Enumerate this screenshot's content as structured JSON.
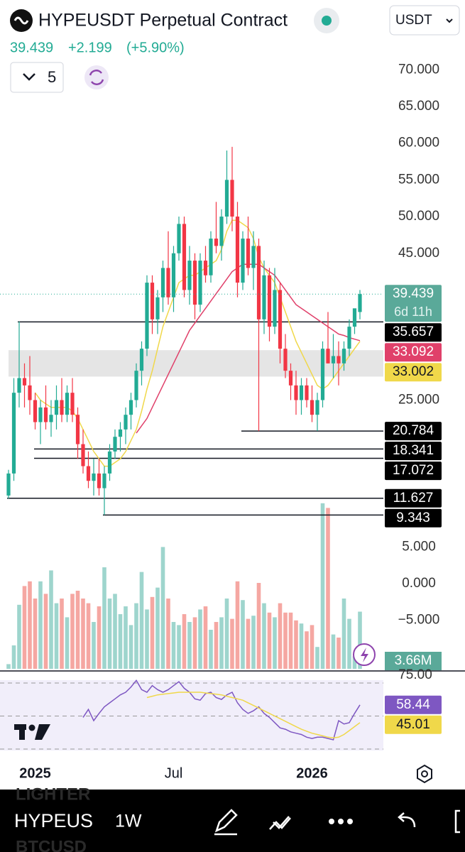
{
  "header": {
    "title": "HYPEUSDT Perpetual Contract",
    "currency": "USDT",
    "price": "39.439",
    "change": "+2.199",
    "change_percent": "(+5.90%)",
    "count": "5"
  },
  "chart_data": {
    "type": "candlestick",
    "categories": [
      null,
      null,
      null,
      null,
      null,
      "2025",
      null,
      null,
      null,
      null,
      null,
      null,
      null,
      null,
      null,
      null,
      null,
      null,
      null,
      null,
      null,
      null,
      null,
      null,
      null,
      null,
      null,
      null,
      null,
      null,
      null,
      "Jul",
      null,
      null,
      null,
      null,
      null,
      null,
      null,
      null,
      null,
      null,
      null,
      null,
      null,
      null,
      null,
      null,
      null,
      null,
      null,
      null,
      null,
      null,
      null,
      null,
      null,
      "2026",
      null,
      null,
      null,
      null,
      null,
      null,
      null,
      null,
      null
    ],
    "ohlc": [
      [
        12,
        15.5,
        11.6,
        15
      ],
      [
        15,
        28,
        14,
        26
      ],
      [
        26,
        35.7,
        24,
        28
      ],
      [
        28,
        30,
        24,
        27
      ],
      [
        27,
        31,
        23,
        25
      ],
      [
        25,
        26,
        21,
        22
      ],
      [
        22,
        25,
        19,
        24
      ],
      [
        24,
        27,
        21,
        22
      ],
      [
        22,
        25,
        20,
        23
      ],
      [
        23,
        27,
        21,
        25
      ],
      [
        25,
        28,
        22,
        23
      ],
      [
        23,
        27,
        22,
        26
      ],
      [
        26,
        28,
        22,
        23
      ],
      [
        23,
        24,
        17,
        19
      ],
      [
        19,
        21,
        15,
        16
      ],
      [
        16,
        18,
        13,
        14
      ],
      [
        14,
        17,
        12,
        15
      ],
      [
        15,
        17,
        12,
        13
      ],
      [
        13,
        16,
        9.343,
        15
      ],
      [
        15,
        19,
        14,
        18
      ],
      [
        18,
        21,
        17,
        20
      ],
      [
        20,
        22,
        18,
        21
      ],
      [
        21,
        24,
        19,
        23
      ],
      [
        23,
        26,
        21,
        25
      ],
      [
        25,
        30,
        24,
        29
      ],
      [
        29,
        33,
        27,
        32
      ],
      [
        32,
        42,
        31,
        41
      ],
      [
        41,
        42,
        34,
        36
      ],
      [
        36,
        40,
        34,
        39
      ],
      [
        39,
        44,
        37,
        43
      ],
      [
        43,
        48,
        38,
        39
      ],
      [
        39,
        46,
        37,
        45
      ],
      [
        45,
        50,
        44,
        49
      ],
      [
        49,
        50,
        39,
        40
      ],
      [
        40,
        46,
        38,
        44
      ],
      [
        44,
        45,
        36,
        38
      ],
      [
        38,
        45,
        37,
        44
      ],
      [
        44,
        46,
        41,
        42
      ],
      [
        42,
        48,
        41,
        47
      ],
      [
        47,
        52,
        45,
        46
      ],
      [
        46,
        51,
        44,
        50
      ],
      [
        50,
        59,
        49,
        55
      ],
      [
        55,
        59.5,
        48,
        50
      ],
      [
        50,
        52,
        39,
        41
      ],
      [
        41,
        48,
        40,
        47
      ],
      [
        47,
        50,
        42,
        43
      ],
      [
        43,
        48,
        40,
        46
      ],
      [
        46,
        47,
        20.784,
        36
      ],
      [
        36,
        44,
        34,
        42
      ],
      [
        42,
        43,
        33,
        35
      ],
      [
        35,
        43,
        34,
        40
      ],
      [
        40,
        41,
        30,
        32
      ],
      [
        32,
        34,
        28,
        29
      ],
      [
        29,
        30,
        25,
        27
      ],
      [
        27,
        29,
        23,
        25
      ],
      [
        25,
        28,
        23,
        27
      ],
      [
        27,
        28,
        24,
        25
      ],
      [
        25,
        27,
        22,
        23
      ],
      [
        23,
        26,
        20.8,
        25
      ],
      [
        25,
        33,
        24,
        32
      ],
      [
        32,
        37,
        30,
        30
      ],
      [
        30,
        34,
        28,
        31
      ],
      [
        31,
        33,
        27,
        30
      ],
      [
        30,
        33,
        29,
        32
      ],
      [
        32,
        36,
        31,
        35
      ],
      [
        35,
        37,
        34,
        37.5
      ],
      [
        37,
        40,
        36,
        39.439
      ]
    ],
    "up_color": "#22ab94",
    "down_color": "#f23645",
    "ylim": [
      -11.9,
      70.8
    ],
    "yticks": [
      {
        "value": 70,
        "label": "70.000"
      },
      {
        "value": 65,
        "label": "65.000"
      },
      {
        "value": 60,
        "label": "60.000"
      },
      {
        "value": 55,
        "label": "55.000"
      },
      {
        "value": 50,
        "label": "50.000"
      },
      {
        "value": 45,
        "label": "45.000"
      },
      {
        "value": 25,
        "label": "25.000"
      },
      {
        "value": 5,
        "label": "5.000"
      },
      {
        "value": 0,
        "label": "0.000"
      },
      {
        "value": -5,
        "label": "−5.000"
      }
    ],
    "last_price": 39.439,
    "countdown": "6d 11h",
    "levels": [
      35.657,
      20.784,
      18.341,
      17.072,
      11.627,
      9.343
    ],
    "zone": [
      28.2,
      31.8
    ],
    "moving_averages": [
      {
        "color": "#f0d84a",
        "values": [
          null,
          null,
          null,
          null,
          null,
          26,
          25,
          24.5,
          24,
          24,
          24,
          24,
          23.5,
          22.5,
          21,
          19.5,
          18,
          17,
          16,
          16,
          16.5,
          17,
          18,
          19.5,
          21,
          23.5,
          26.5,
          29,
          32,
          35,
          37,
          39,
          41,
          41.5,
          42,
          42,
          42.5,
          43,
          43.5,
          44,
          45.5,
          48,
          49.5,
          49.5,
          49,
          48.5,
          47,
          44.5,
          43,
          42,
          41,
          39,
          37,
          35,
          33,
          31.5,
          30,
          28.5,
          27,
          26.5,
          27,
          28,
          29,
          30,
          31,
          32,
          33.002
        ]
      },
      {
        "color": "#e0406a",
        "values": [
          null,
          null,
          null,
          null,
          null,
          null,
          null,
          null,
          null,
          null,
          null,
          null,
          null,
          null,
          null,
          null,
          null,
          null,
          null,
          null,
          null,
          null,
          null,
          null,
          20.5,
          21.5,
          22.5,
          24,
          25.5,
          27,
          28.5,
          30,
          31.5,
          33,
          34.5,
          35.5,
          36.5,
          37.5,
          38.5,
          39.5,
          40.5,
          41.5,
          42.5,
          43,
          43.5,
          43.5,
          43.5,
          43.5,
          43,
          42.5,
          42,
          41,
          40,
          39,
          38,
          37.5,
          37,
          36.5,
          36,
          35.5,
          35,
          34.5,
          34,
          33.8,
          33.5,
          33.3,
          33.092
        ]
      }
    ],
    "volume": {
      "values": [
        0.3,
        1.5,
        4.1,
        5.3,
        5.6,
        4.5,
        5.6,
        4.8,
        6.3,
        4.2,
        4.5,
        3.3,
        4.8,
        5.0,
        4.5,
        4.2,
        3.0,
        4.0,
        6.5,
        4.5,
        4.8,
        3.5,
        4.0,
        2.8,
        4.2,
        6.2,
        3.8,
        4.6,
        5.2,
        7.8,
        4.5,
        3.0,
        2.8,
        3.5,
        3.0,
        3.3,
        3.8,
        4.0,
        2.5,
        3.0,
        3.3,
        4.5,
        3.2,
        5.6,
        4.4,
        3.2,
        3.4,
        5.5,
        4.2,
        3.6,
        3.3,
        4.2,
        3.6,
        3.6,
        3.1,
        2.9,
        2.4,
        2.8,
        1.4,
        10.6,
        10.3,
        2.2,
        2.0,
        4.5,
        3.2,
        0.8,
        3.66
      ],
      "last_label": "3.66M"
    },
    "rsi": {
      "ylim": [
        25,
        75
      ],
      "yticks": [
        {
          "value": 75,
          "label": "75.00"
        },
        {
          "value": 50,
          "label": null
        },
        {
          "value": 25,
          "label": null
        }
      ],
      "series": [
        {
          "color": "#7e57c2",
          "values": [
            null,
            null,
            null,
            null,
            null,
            null,
            null,
            null,
            null,
            null,
            null,
            null,
            null,
            null,
            49,
            55,
            46.5,
            52,
            57,
            60,
            63,
            66,
            68,
            72,
            77,
            70,
            68,
            73,
            70,
            68,
            70,
            73,
            76,
            71,
            68,
            63,
            62,
            67,
            68,
            64,
            62.6,
            66,
            68,
            60,
            55,
            52,
            54,
            57,
            52,
            49,
            45,
            41,
            40,
            38,
            37,
            36,
            34,
            33,
            34,
            34,
            33,
            32,
            46.5,
            44,
            45,
            52,
            58.44
          ]
        },
        {
          "color": "#f0d84a",
          "values": [
            null,
            null,
            null,
            null,
            null,
            null,
            null,
            null,
            null,
            null,
            null,
            null,
            null,
            null,
            null,
            null,
            null,
            null,
            null,
            null,
            null,
            null,
            null,
            null,
            null,
            null,
            64,
            65,
            66,
            66.5,
            67,
            67.5,
            68,
            68,
            68,
            68,
            68,
            67.5,
            67,
            66.5,
            66,
            65,
            64,
            63,
            62,
            60,
            58,
            56,
            54,
            52,
            50,
            48,
            46,
            44,
            42,
            40,
            38.5,
            37,
            36,
            35,
            34,
            33.5,
            34,
            36,
            39,
            42,
            45.01
          ]
        }
      ]
    }
  },
  "toolbar": {
    "prev_symbol": "LIGHTER",
    "symbol": "HYPEUS",
    "next_symbol": "BTCUSD",
    "interval": "1W"
  }
}
